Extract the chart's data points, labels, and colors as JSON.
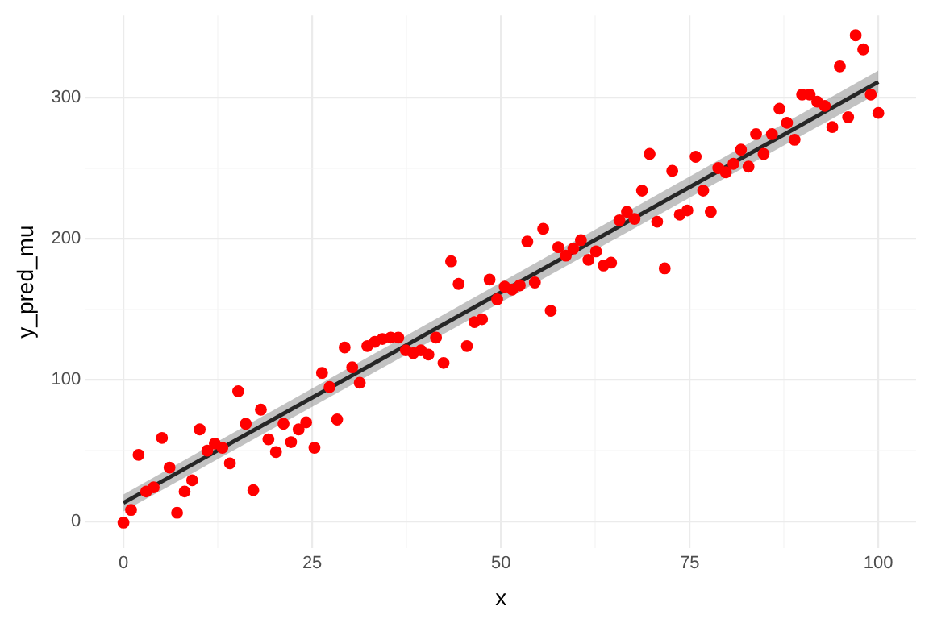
{
  "chart_data": {
    "type": "scatter",
    "xlabel": "x",
    "ylabel": "y_pred_mu",
    "xlim": [
      -5,
      105
    ],
    "ylim": [
      -19,
      358
    ],
    "xticks": [
      0,
      {
        "value": 12.5,
        "label": null
      },
      25,
      {
        "value": 37.5,
        "label": null
      },
      50,
      {
        "value": 62.5,
        "label": null
      },
      75,
      {
        "value": 87.5,
        "label": null
      },
      100
    ],
    "yticks": [
      0,
      {
        "value": 50,
        "label": null
      },
      100,
      {
        "value": 150,
        "label": null
      },
      200,
      {
        "value": 250,
        "label": null
      },
      300
    ],
    "grid": true,
    "legend": false,
    "marker": "circle",
    "series": [
      {
        "type": "line",
        "color": "#262626",
        "marker": "none",
        "x": [
          0,
          100
        ],
        "values": [
          13,
          311
        ],
        "lower": [
          7,
          303
        ],
        "upper": [
          19,
          319
        ]
      },
      {
        "color": "#ff0000",
        "x": [
          0,
          1,
          2,
          3,
          4,
          5.1,
          6.1,
          7.1,
          8.1,
          9.1,
          10.1,
          11.1,
          12.1,
          13.1,
          14.1,
          15.2,
          16.2,
          17.2,
          18.2,
          19.2,
          20.2,
          21.2,
          22.2,
          23.2,
          24.2,
          25.3,
          26.3,
          27.3,
          28.3,
          29.3,
          30.3,
          31.3,
          32.3,
          33.3,
          34.3,
          35.4,
          36.4,
          37.4,
          38.4,
          39.4,
          40.4,
          41.4,
          42.4,
          43.4,
          44.4,
          45.5,
          46.5,
          47.5,
          48.5,
          49.5,
          50.5,
          51.5,
          52.5,
          53.5,
          54.5,
          55.6,
          56.6,
          57.6,
          58.6,
          59.6,
          60.6,
          61.6,
          62.6,
          63.6,
          64.6,
          65.7,
          66.7,
          67.7,
          68.7,
          69.7,
          70.7,
          71.7,
          72.7,
          73.7,
          74.7,
          75.8,
          76.8,
          77.8,
          78.8,
          79.8,
          80.8,
          81.8,
          82.8,
          83.8,
          84.8,
          85.9,
          86.9,
          87.9,
          88.9,
          89.9,
          90.9,
          91.9,
          92.9,
          93.9,
          94.9,
          96,
          97,
          98,
          99,
          100
        ],
        "values": [
          -1,
          8,
          47,
          21,
          24,
          59,
          38,
          6,
          21,
          29,
          65,
          50,
          55,
          52,
          41,
          92,
          69,
          22,
          79,
          58,
          49,
          69,
          56,
          65,
          70,
          52,
          105,
          95,
          72,
          123,
          109,
          98,
          124,
          127,
          129,
          130,
          130,
          121,
          119,
          121,
          118,
          130,
          112,
          184,
          168,
          124,
          141,
          143,
          171,
          157,
          166,
          164,
          167,
          198,
          169,
          207,
          149,
          194,
          188,
          193,
          199,
          185,
          191,
          181,
          183,
          213,
          219,
          214,
          234,
          260,
          212,
          179,
          248,
          217,
          220,
          258,
          234,
          219,
          250,
          247,
          253,
          263,
          251,
          274,
          260,
          274,
          292,
          282,
          270,
          302,
          302,
          297,
          294,
          279,
          322,
          286,
          344,
          334,
          302,
          289
        ]
      }
    ]
  }
}
